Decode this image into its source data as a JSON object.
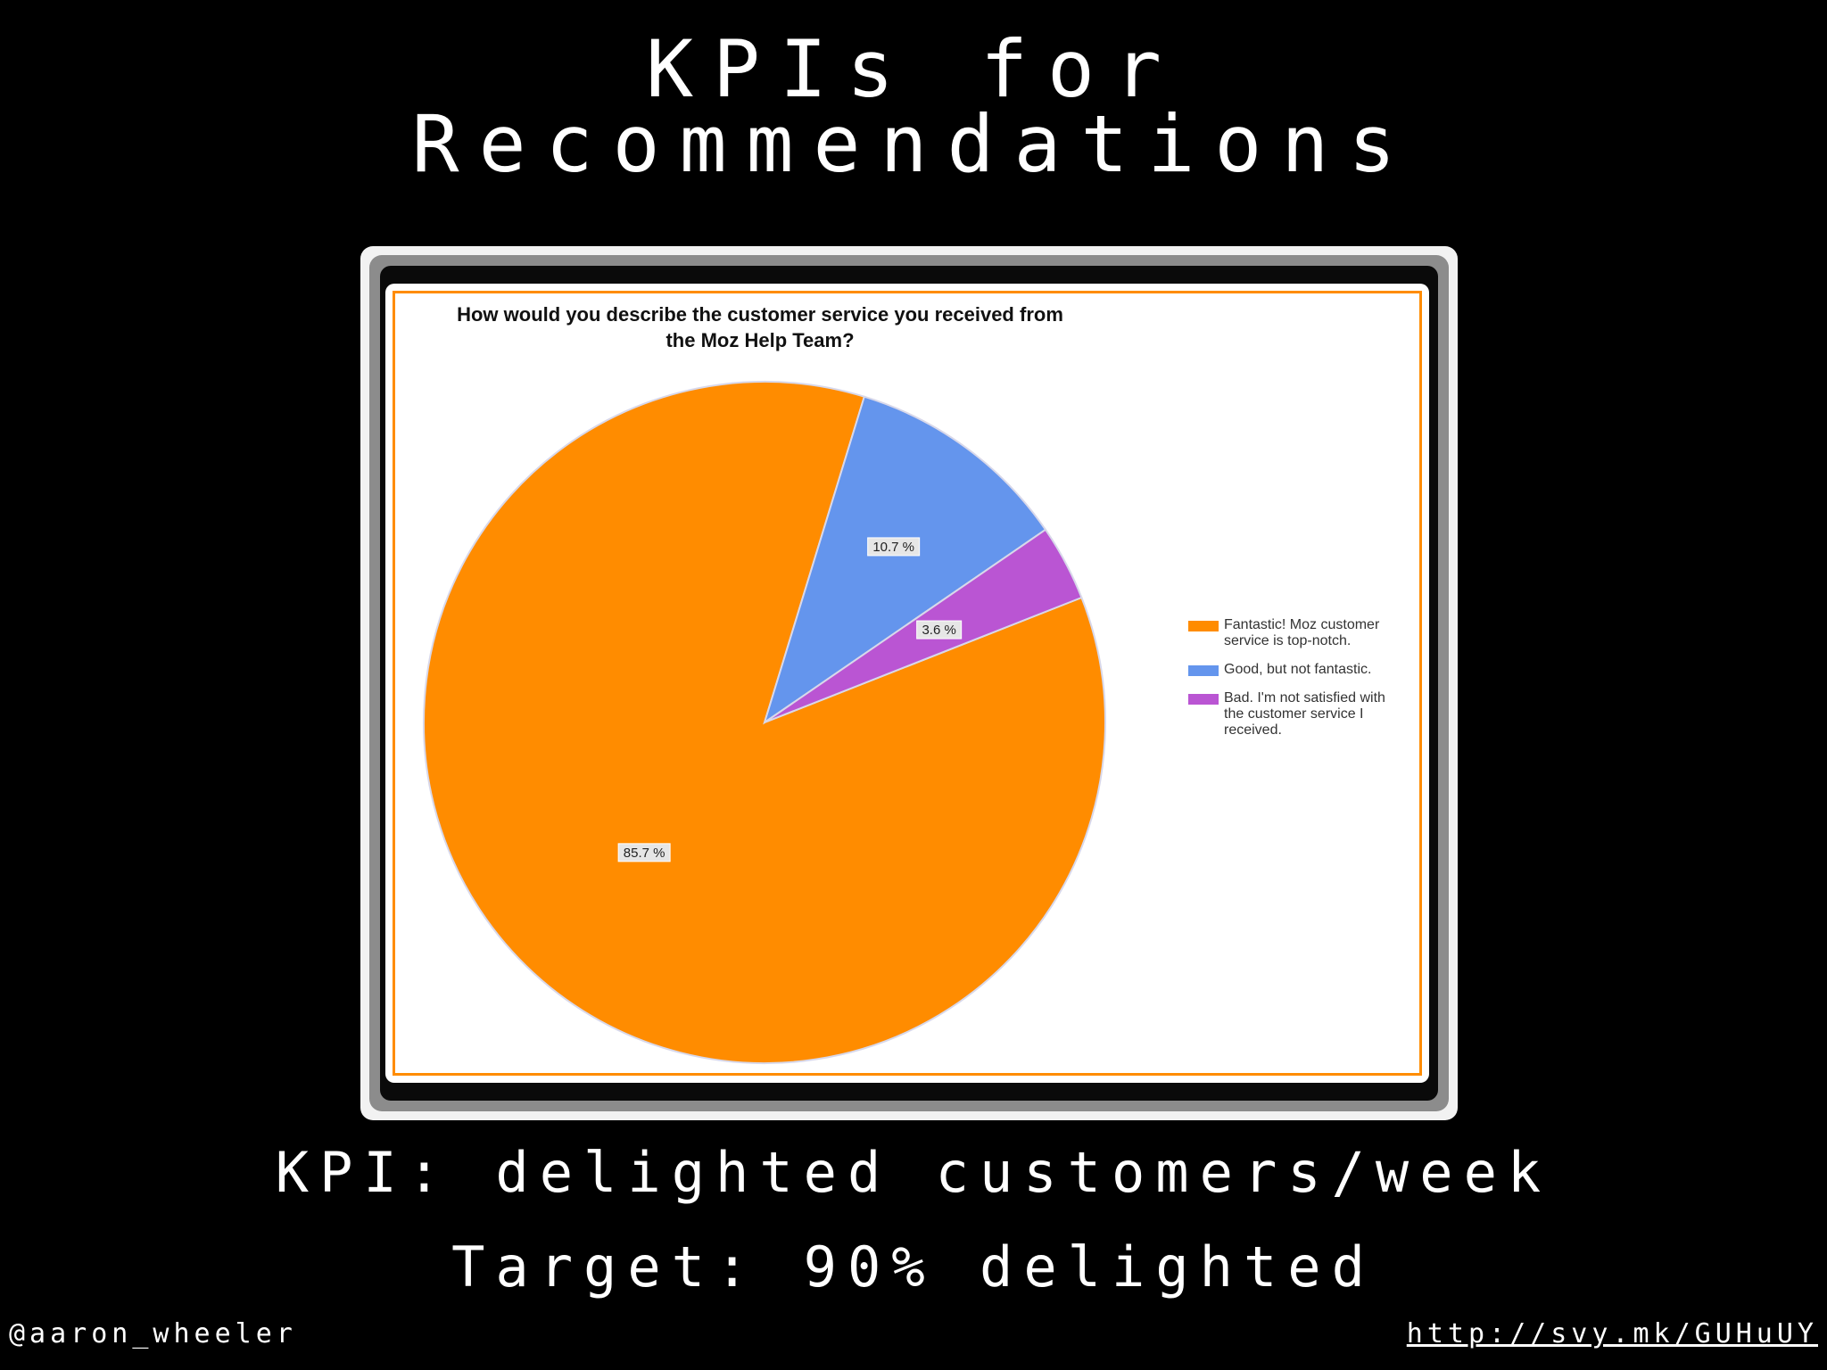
{
  "slide": {
    "title_line_1": "KPIs for",
    "title_line_2": "Recommendations",
    "kpi_line": "KPI: delighted customers/week",
    "target_line": "Target: 90% delighted",
    "footer_handle": "@aaron_wheeler",
    "footer_link": "http://svy.mk/GUHuUY"
  },
  "colors": {
    "background": "#000000",
    "frame_border": "#ff8c00",
    "fantastic": "#ff8c00",
    "good": "#6495ed",
    "bad": "#ba55d3"
  },
  "chart_data": {
    "type": "pie",
    "title": "How would you describe the customer service you received from\nthe Moz Help Team?",
    "slices": [
      {
        "label": "Fantastic! Moz customer service is top-notch.",
        "value": 85.7,
        "display": "85.7 %",
        "color": "#ff8c00"
      },
      {
        "label": "Good, but not fantastic.",
        "value": 10.7,
        "display": "10.7 %",
        "color": "#6495ed"
      },
      {
        "label": "Bad. I'm not satisfied with the customer service I received.",
        "value": 3.6,
        "display": "3.6 %",
        "color": "#ba55d3"
      }
    ],
    "legend_position": "right"
  }
}
